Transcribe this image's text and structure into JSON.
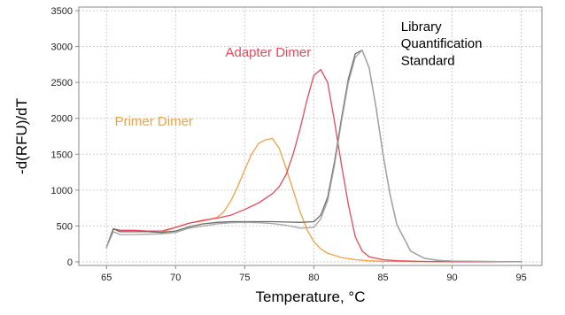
{
  "chart_data": {
    "type": "line",
    "title": "",
    "xlabel": "Temperature, °C",
    "ylabel": "-d(RFU)/dT",
    "xlim": [
      63,
      96.5
    ],
    "ylim": [
      -50,
      3550
    ],
    "xticks": [
      65,
      70,
      75,
      80,
      85,
      90,
      95
    ],
    "yticks": [
      0,
      500,
      1000,
      1500,
      2000,
      2500,
      3000,
      3500
    ],
    "grid": true,
    "legend": "none",
    "annotations": [
      {
        "text": "Library",
        "color": "#000000",
        "x": 86.3,
        "y": 3220
      },
      {
        "text": "Quantification",
        "color": "#000000",
        "x": 86.3,
        "y": 2980
      },
      {
        "text": "Standard",
        "color": "#000000",
        "x": 86.3,
        "y": 2740
      },
      {
        "text": "Adapter Dimer",
        "color": "#e8495a",
        "x": 73.6,
        "y": 2860
      },
      {
        "text": "Primer Dimer",
        "color": "#f5a040",
        "x": 65.6,
        "y": 1900
      }
    ],
    "series": [
      {
        "color": "#f5a040",
        "x": [
          65,
          65.5,
          66,
          67,
          68,
          69,
          70,
          71,
          72,
          73,
          73.5,
          74,
          74.5,
          75,
          75.5,
          76,
          76.5,
          77,
          77.5,
          78,
          78.5,
          79,
          79.5,
          80,
          80.5,
          81,
          82,
          83,
          84,
          85,
          86,
          88,
          90,
          95
        ],
        "y": [
          200,
          460,
          420,
          420,
          420,
          410,
          480,
          540,
          570,
          620,
          700,
          850,
          1050,
          1280,
          1500,
          1650,
          1700,
          1720,
          1580,
          1300,
          1000,
          700,
          450,
          280,
          180,
          120,
          60,
          30,
          15,
          8,
          5,
          3,
          2,
          0
        ]
      },
      {
        "color": "#e8495a",
        "x": [
          65,
          65.5,
          66,
          67,
          68,
          69,
          70,
          71,
          72,
          73,
          74,
          75,
          76,
          77,
          77.5,
          78,
          78.5,
          79,
          79.5,
          80,
          80.5,
          81,
          81.5,
          82,
          82.5,
          83,
          83.5,
          84,
          85,
          86,
          88,
          90,
          95
        ],
        "y": [
          200,
          460,
          440,
          440,
          430,
          430,
          480,
          540,
          580,
          610,
          650,
          730,
          820,
          950,
          1050,
          1220,
          1500,
          1850,
          2250,
          2600,
          2680,
          2500,
          1950,
          1350,
          800,
          350,
          150,
          70,
          30,
          15,
          5,
          2,
          0
        ]
      },
      {
        "color": "#6b6b6b",
        "x": [
          65,
          65.5,
          66,
          67,
          68,
          69,
          70,
          71,
          72,
          73,
          74,
          75,
          76,
          77,
          78,
          79,
          80,
          80.5,
          81,
          81.5,
          82,
          82.5,
          83,
          83.5,
          84,
          84.5,
          85,
          85.5,
          86,
          87,
          88,
          89,
          90,
          95
        ],
        "y": [
          200,
          460,
          420,
          420,
          420,
          410,
          430,
          490,
          530,
          550,
          560,
          560,
          560,
          560,
          555,
          550,
          560,
          650,
          900,
          1400,
          2000,
          2550,
          2900,
          2950,
          2700,
          2150,
          1500,
          950,
          520,
          150,
          50,
          20,
          10,
          0
        ]
      },
      {
        "color": "#a3a3a3",
        "x": [
          65,
          65.5,
          66,
          67,
          68,
          69,
          70,
          71,
          72,
          73,
          74,
          75,
          76,
          77,
          78,
          79,
          80,
          80.5,
          81,
          81.5,
          82,
          82.5,
          83,
          83.5,
          84,
          84.5,
          85,
          85.5,
          86,
          87,
          88,
          89,
          90,
          95
        ],
        "y": [
          200,
          420,
          380,
          380,
          385,
          390,
          410,
          470,
          500,
          530,
          545,
          550,
          545,
          535,
          510,
          470,
          480,
          600,
          850,
          1350,
          1950,
          2500,
          2850,
          2950,
          2700,
          2150,
          1500,
          950,
          520,
          150,
          50,
          20,
          10,
          0
        ]
      }
    ]
  }
}
